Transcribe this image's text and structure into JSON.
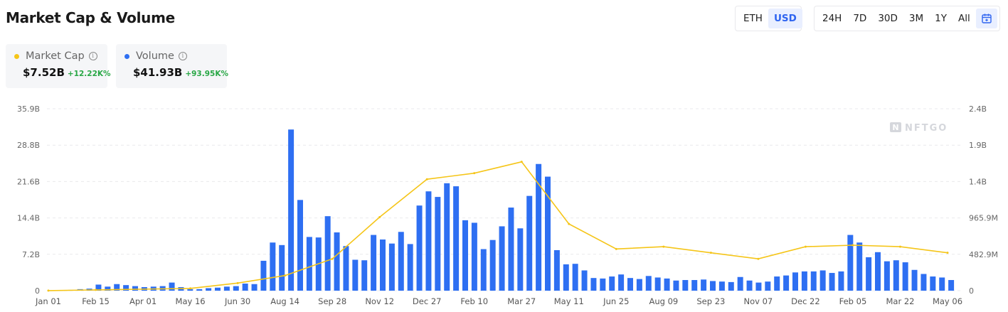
{
  "header": {
    "title": "Market Cap & Volume"
  },
  "currency_toggle": {
    "options": [
      "ETH",
      "USD"
    ],
    "selected": "USD"
  },
  "range_toggle": {
    "options": [
      "24H",
      "7D",
      "30D",
      "3M",
      "1Y",
      "All"
    ],
    "selected": "All",
    "calendar_icon": "calendar-icon"
  },
  "stats": {
    "market_cap": {
      "label": "Market Cap",
      "value": "$7.52B",
      "change": "+12.22K%",
      "color": "#f5c518"
    },
    "volume": {
      "label": "Volume",
      "value": "$41.93B",
      "change": "+93.95K%",
      "color": "#2e6ff2"
    }
  },
  "watermark": "NFTGO",
  "chart_data": {
    "type": "bar",
    "x_tick_labels": [
      "Jan 01",
      "Feb 15",
      "Apr 01",
      "May 16",
      "Jun 30",
      "Aug 14",
      "Sep 28",
      "Nov 12",
      "Dec 27",
      "Feb 10",
      "Mar 27",
      "May 11",
      "Jun 25",
      "Aug 09",
      "Sep 23",
      "Nov 07",
      "Dec 22",
      "Feb 05",
      "Mar 22",
      "May 06"
    ],
    "left_axis": {
      "ticks": [
        "0",
        "7.2B",
        "14.4B",
        "21.6B",
        "28.8B",
        "35.9B"
      ],
      "ylim": [
        0,
        35.9
      ]
    },
    "right_axis": {
      "ticks": [
        "0",
        "482.9M",
        "965.9M",
        "1.4B",
        "1.9B",
        "2.4B"
      ],
      "ylim": [
        0,
        2.4
      ]
    },
    "series": [
      {
        "name": "Volume",
        "type": "bar",
        "axis": "left",
        "unit": "B USD",
        "values": [
          0.05,
          0.1,
          0.15,
          0.3,
          0.4,
          1.2,
          0.8,
          1.3,
          1.1,
          0.9,
          0.7,
          0.8,
          0.9,
          1.6,
          0.7,
          0.3,
          0.3,
          0.5,
          0.6,
          0.8,
          0.9,
          1.4,
          1.3,
          5.9,
          9.5,
          9.0,
          31.8,
          17.9,
          10.6,
          10.5,
          14.7,
          11.5,
          8.8,
          6.1,
          6.0,
          11.0,
          10.1,
          9.3,
          11.6,
          9.2,
          16.8,
          19.6,
          18.5,
          21.2,
          20.6,
          13.9,
          13.4,
          8.2,
          10.0,
          12.7,
          16.4,
          12.3,
          18.7,
          25.0,
          22.5,
          8.0,
          5.2,
          5.3,
          4.0,
          2.5,
          2.4,
          2.8,
          3.2,
          2.5,
          2.3,
          2.9,
          2.6,
          2.4,
          2.0,
          2.1,
          2.1,
          2.2,
          1.9,
          1.8,
          1.7,
          2.7,
          2.0,
          1.6,
          1.8,
          2.8,
          3.0,
          3.6,
          3.8,
          3.8,
          4.0,
          3.5,
          3.8,
          11.0,
          9.5,
          6.6,
          7.6,
          5.8,
          6.0,
          5.6,
          4.1,
          3.3,
          2.8,
          2.6,
          2.1
        ],
        "color": "#2e6ff2"
      },
      {
        "name": "Market Cap",
        "type": "line",
        "axis": "right",
        "unit": "USD",
        "points": [
          [
            "Jan 01",
            0.001
          ],
          [
            "Feb 15",
            0.01
          ],
          [
            "May 16",
            0.03
          ],
          [
            "Jun 30",
            0.1
          ],
          [
            "Aug 14",
            0.2
          ],
          [
            "Sep 28",
            0.42
          ],
          [
            "Nov 12",
            0.97
          ],
          [
            "Dec 27",
            1.47
          ],
          [
            "Feb 10",
            1.55
          ],
          [
            "Mar 27",
            1.7
          ],
          [
            "May 11",
            0.88
          ],
          [
            "Jun 25",
            0.55
          ],
          [
            "Aug 09",
            0.58
          ],
          [
            "Sep 23",
            0.5
          ],
          [
            "Nov 07",
            0.42
          ],
          [
            "Dec 22",
            0.58
          ],
          [
            "Feb 05",
            0.6
          ],
          [
            "Mar 22",
            0.58
          ],
          [
            "May 06",
            0.5
          ]
        ],
        "color": "#f5c518"
      }
    ],
    "grid": true,
    "legend": "top-left"
  }
}
